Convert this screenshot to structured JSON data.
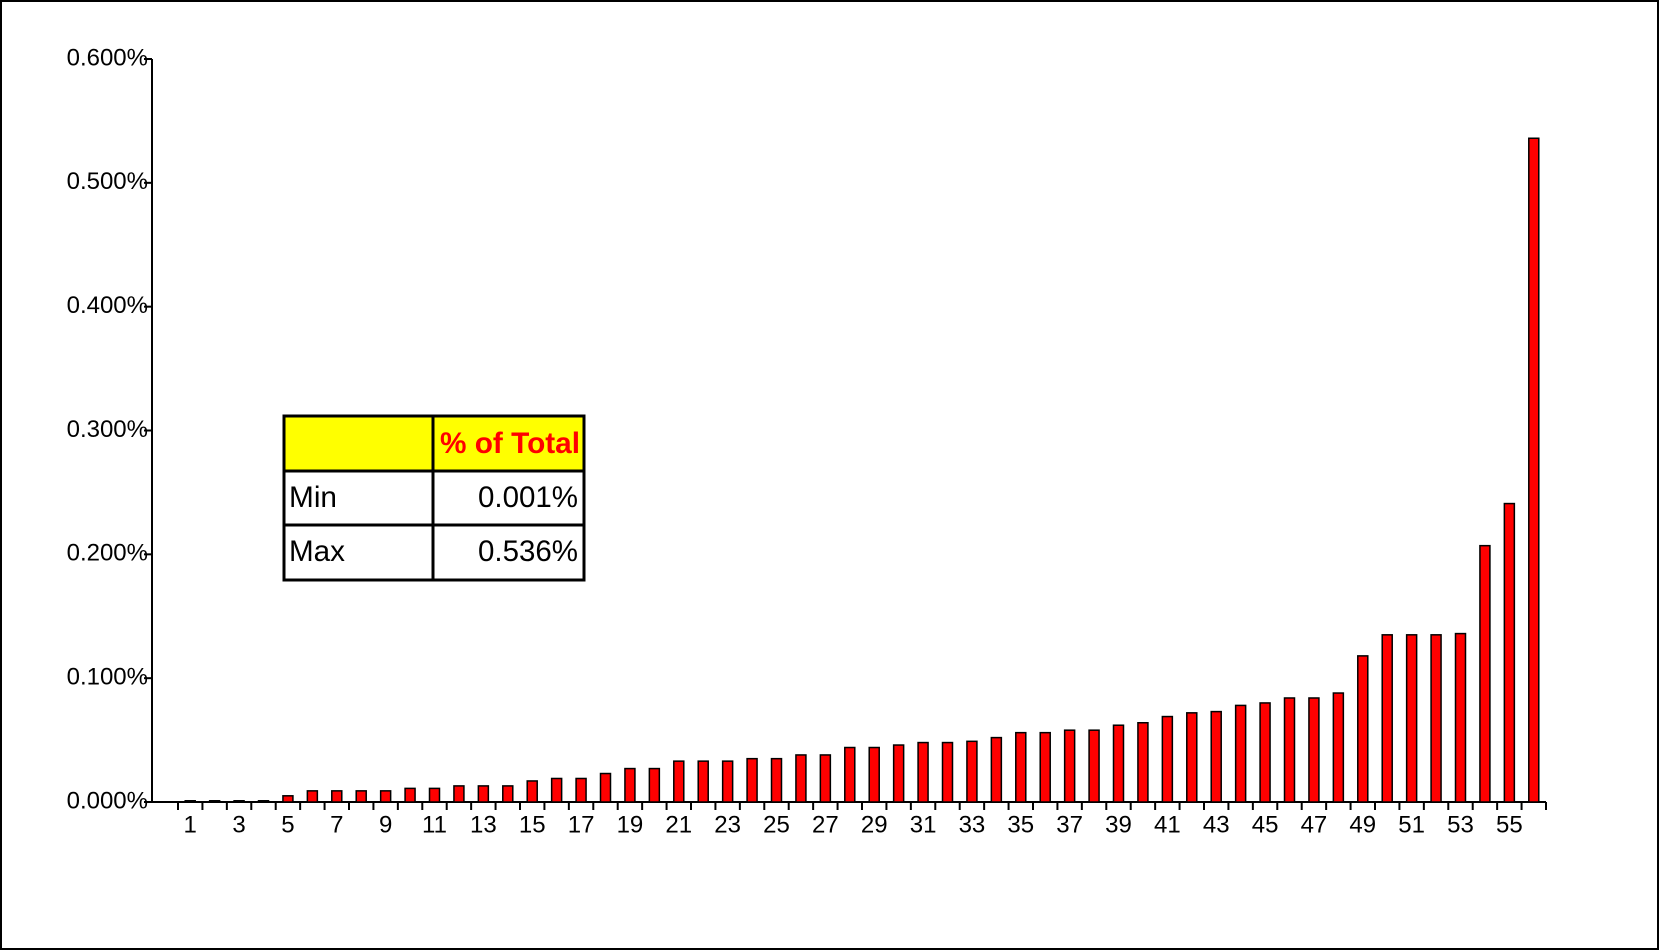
{
  "chart_data": {
    "type": "bar",
    "categories": [
      1,
      null,
      3,
      null,
      5,
      null,
      7,
      null,
      9,
      null,
      11,
      null,
      13,
      null,
      15,
      null,
      17,
      null,
      19,
      null,
      21,
      null,
      23,
      null,
      25,
      null,
      27,
      null,
      29,
      null,
      31,
      null,
      33,
      null,
      35,
      null,
      37,
      null,
      39,
      null,
      41,
      null,
      43,
      null,
      45,
      null,
      47,
      null,
      49,
      null,
      51,
      null,
      53,
      null,
      55,
      null
    ],
    "values": [
      0.001,
      0.001,
      0.001,
      0.001,
      0.005,
      0.009,
      0.009,
      0.009,
      0.009,
      0.011,
      0.011,
      0.013,
      0.013,
      0.013,
      0.017,
      0.019,
      0.019,
      0.023,
      0.027,
      0.027,
      0.033,
      0.033,
      0.033,
      0.035,
      0.035,
      0.038,
      0.038,
      0.044,
      0.044,
      0.046,
      0.048,
      0.048,
      0.049,
      0.052,
      0.056,
      0.056,
      0.058,
      0.058,
      0.062,
      0.064,
      0.069,
      0.072,
      0.073,
      0.078,
      0.08,
      0.084,
      0.084,
      0.088,
      0.118,
      0.135,
      0.135,
      0.135,
      0.136,
      0.207,
      0.241,
      0.536
    ],
    "color": "#ff0000",
    "ylim": [
      0,
      0.6
    ],
    "yticks": [
      {
        "value": 0,
        "label": "0.000%"
      },
      {
        "value": 0.1,
        "label": "0.100%"
      },
      {
        "value": 0.2,
        "label": "0.200%"
      },
      {
        "value": 0.3,
        "label": "0.300%"
      },
      {
        "value": 0.4,
        "label": "0.400%"
      },
      {
        "value": 0.5,
        "label": "0.500%"
      },
      {
        "value": 0.6,
        "label": "0.600%"
      }
    ],
    "grid": false,
    "table": {
      "header": "% of Total",
      "rows": [
        [
          "Min",
          "0.001%"
        ],
        [
          "Max",
          "0.536%"
        ]
      ]
    }
  }
}
